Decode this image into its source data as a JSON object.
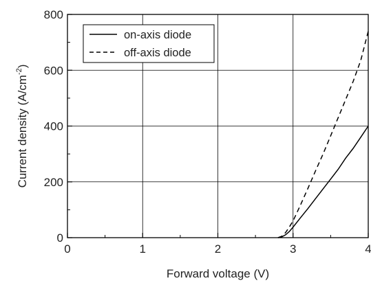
{
  "chart_data": {
    "type": "line",
    "xlabel": "Forward voltage (V)",
    "ylabel_main": "Current density (A/cm",
    "ylabel_sup": "-2",
    "ylabel_tail": ")",
    "xlim": [
      0,
      4
    ],
    "ylim": [
      0,
      800
    ],
    "x_ticks": [
      0,
      1,
      2,
      3,
      4
    ],
    "y_ticks": [
      0,
      200,
      400,
      600,
      800
    ],
    "grid": true,
    "legend_position": "top-left",
    "series": [
      {
        "name": "on-axis diode",
        "style": "solid",
        "color": "#000000",
        "x": [
          2.8,
          2.85,
          2.9,
          2.95,
          3.0,
          3.1,
          3.2,
          3.3,
          3.4,
          3.5,
          3.6,
          3.7,
          3.8,
          3.9,
          4.0
        ],
        "y": [
          0,
          3,
          10,
          22,
          38,
          72,
          105,
          140,
          175,
          210,
          245,
          285,
          320,
          360,
          400
        ]
      },
      {
        "name": "off-axis diode",
        "style": "dashed",
        "color": "#000000",
        "x": [
          2.8,
          2.85,
          2.9,
          2.95,
          3.0,
          3.1,
          3.2,
          3.3,
          3.4,
          3.5,
          3.6,
          3.7,
          3.8,
          3.9,
          4.0
        ],
        "y": [
          0,
          5,
          18,
          38,
          60,
          118,
          178,
          240,
          300,
          365,
          430,
          495,
          560,
          635,
          740
        ]
      }
    ]
  }
}
